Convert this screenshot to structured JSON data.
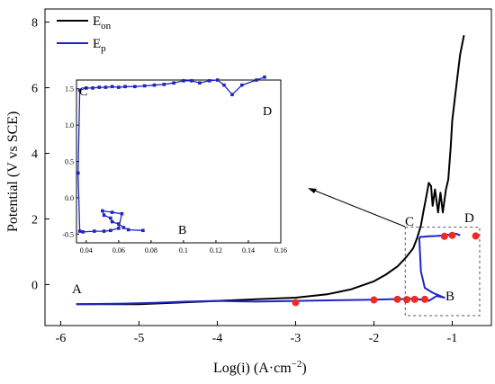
{
  "chart_data": [
    {
      "type": "line",
      "xlabel_main": "Log(i) (A·cm",
      "xlabel_sup": "−2",
      "xlabel_end": ")",
      "ylabel": "Potential (V vs SCE)",
      "xlim": [
        -6.2,
        -0.5
      ],
      "ylim": [
        -1.25,
        8.4
      ],
      "xticks": [
        -6,
        -5,
        -4,
        -3,
        -2,
        -1
      ],
      "yticks": [
        0,
        2,
        4,
        6,
        8
      ],
      "xtick_labels": [
        "-6",
        "-5",
        "-4",
        "-3",
        "-2",
        "-1"
      ],
      "ytick_labels": [
        "0",
        "2",
        "4",
        "6",
        "8"
      ],
      "series": [
        {
          "name": "E",
          "name_sub": "on",
          "color": "#000000",
          "x": [
            -5.8,
            -5.0,
            -4.5,
            -4.0,
            -3.5,
            -3.0,
            -2.6,
            -2.3,
            -2.0,
            -1.85,
            -1.7,
            -1.6,
            -1.5,
            -1.45,
            -1.4,
            -1.37,
            -1.33,
            -1.3,
            -1.27,
            -1.25,
            -1.22,
            -1.18,
            -1.15,
            -1.12,
            -1.08,
            -1.05,
            -1.02,
            -1.0,
            -0.95,
            -0.9,
            -0.85
          ],
          "y": [
            -0.6,
            -0.6,
            -0.55,
            -0.5,
            -0.45,
            -0.4,
            -0.3,
            -0.15,
            0.1,
            0.3,
            0.55,
            0.8,
            1.1,
            1.4,
            1.8,
            2.2,
            2.7,
            3.1,
            3.0,
            2.4,
            2.9,
            2.2,
            2.8,
            2.2,
            2.9,
            3.2,
            4.2,
            5.0,
            6.0,
            7.0,
            7.6
          ]
        },
        {
          "name": "E",
          "name_sub": "p",
          "color": "#1f25c0",
          "x": [
            -5.8,
            -5.2,
            -4.8,
            -4.4,
            -4.0,
            -3.5,
            -3.0,
            -2.5,
            -2.0,
            -1.8,
            -1.7,
            -1.6,
            -1.55,
            -1.5,
            -1.48,
            -1.45,
            -1.4,
            -1.35,
            -1.3,
            -1.2,
            -1.1,
            -1.15,
            -1.25,
            -1.35,
            -1.4,
            -1.41,
            -1.42,
            -1.41,
            -1.4,
            -1.3,
            -1.2,
            -1.1,
            -1.05,
            -1.0,
            -0.95,
            -0.9
          ],
          "y": [
            -0.6,
            -0.58,
            -0.56,
            -0.52,
            -0.5,
            -0.52,
            -0.5,
            -0.48,
            -0.46,
            -0.45,
            -0.44,
            -0.44,
            -0.42,
            -0.45,
            -0.5,
            -0.44,
            -0.46,
            -0.42,
            -0.5,
            -0.35,
            -0.4,
            -0.35,
            -0.25,
            -0.1,
            0.4,
            0.9,
            1.4,
            1.45,
            1.45,
            1.47,
            1.48,
            1.5,
            1.52,
            1.5,
            1.55,
            1.5
          ]
        },
        {
          "name": "markers",
          "color": "#ee2a22",
          "x": [
            -3.0,
            -2.0,
            -1.7,
            -1.58,
            -1.48,
            -1.35,
            -1.1,
            -1.0,
            -0.7
          ],
          "y": [
            -0.55,
            -0.47,
            -0.45,
            -0.46,
            -0.45,
            -0.45,
            1.47,
            1.5,
            1.48
          ]
        }
      ],
      "legend_position": "top-left",
      "annotations": {
        "A": "A",
        "B": "B",
        "C": "C",
        "D": "D"
      },
      "zoom_box": {
        "x": [
          -1.6,
          -0.65
        ],
        "y": [
          -0.95,
          1.75
        ]
      }
    },
    {
      "type": "line",
      "xlim": [
        0.034,
        0.16
      ],
      "ylim": [
        -0.62,
        1.62
      ],
      "xticks": [
        0.04,
        0.06,
        0.08,
        0.1,
        0.12,
        0.14,
        0.16
      ],
      "yticks": [
        -0.5,
        0.0,
        0.5,
        1.0,
        1.5
      ],
      "xtick_labels": [
        "0.04",
        "0.06",
        "0.08",
        "0.1",
        "0.12",
        "0.14",
        "0.16"
      ],
      "ytick_labels": [
        "-0.5",
        "0.0",
        "0.5",
        "1.0",
        "1.5"
      ],
      "series": [
        {
          "color": "#1f25c0",
          "x": [
            0.075,
            0.066,
            0.063,
            0.06,
            0.056,
            0.055,
            0.051,
            0.05,
            0.056,
            0.062,
            0.06,
            0.055,
            0.051,
            0.045,
            0.038,
            0.036,
            0.035,
            0.036,
            0.04,
            0.044,
            0.048,
            0.052,
            0.056,
            0.06,
            0.064,
            0.07,
            0.076,
            0.082,
            0.088,
            0.094,
            0.1,
            0.105,
            0.11,
            0.116,
            0.121,
            0.125,
            0.13,
            0.136,
            0.145,
            0.15
          ],
          "y": [
            -0.45,
            -0.44,
            -0.41,
            -0.36,
            -0.33,
            -0.28,
            -0.24,
            -0.18,
            -0.2,
            -0.22,
            -0.42,
            -0.45,
            -0.46,
            -0.46,
            -0.47,
            -0.46,
            0.34,
            1.48,
            1.51,
            1.51,
            1.52,
            1.52,
            1.53,
            1.52,
            1.53,
            1.53,
            1.54,
            1.55,
            1.56,
            1.58,
            1.61,
            1.61,
            1.58,
            1.61,
            1.62,
            1.55,
            1.42,
            1.55,
            1.62,
            1.66
          ]
        }
      ],
      "annotations": {
        "B": "B",
        "C": "C",
        "D": "D"
      }
    }
  ]
}
